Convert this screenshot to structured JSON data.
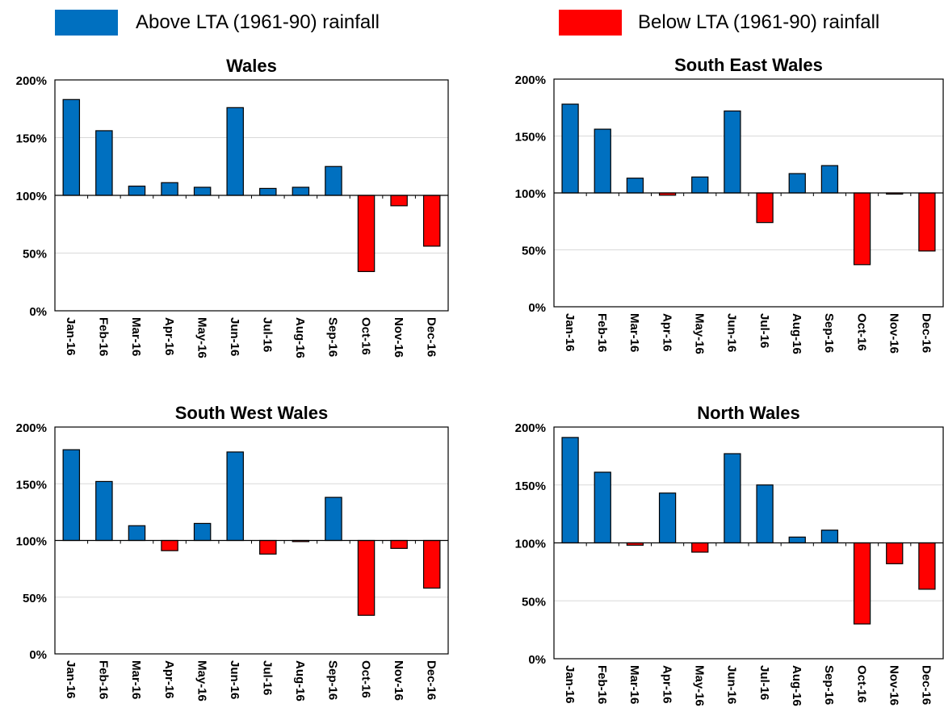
{
  "legend": {
    "above": {
      "label": "Above LTA (1961-90) rainfall",
      "color": "#0070C0"
    },
    "below": {
      "label": "Below LTA (1961-90)  rainfall",
      "color": "#FF0000"
    }
  },
  "chart_data": [
    {
      "type": "bar",
      "title": "Wales",
      "baseline": 100,
      "ylim": [
        0,
        200
      ],
      "yticks": [
        "0%",
        "50%",
        "100%",
        "150%",
        "200%"
      ],
      "categories": [
        "Jan-16",
        "Feb-16",
        "Mar-16",
        "Apr-16",
        "May-16",
        "Jun-16",
        "Jul-16",
        "Aug-16",
        "Sep-16",
        "Oct-16",
        "Nov-16",
        "Dec-16"
      ],
      "values": [
        183,
        156,
        108,
        111,
        107,
        176,
        106,
        107,
        125,
        34,
        91,
        56
      ]
    },
    {
      "type": "bar",
      "title": "South East Wales",
      "baseline": 100,
      "ylim": [
        0,
        200
      ],
      "yticks": [
        "0%",
        "50%",
        "100%",
        "150%",
        "200%"
      ],
      "categories": [
        "Jan-16",
        "Feb-16",
        "Mar-16",
        "Apr-16",
        "May-16",
        "Jun-16",
        "Jul-16",
        "Aug-16",
        "Sep-16",
        "Oct-16",
        "Nov-16",
        "Dec-16"
      ],
      "values": [
        178,
        156,
        113,
        98,
        114,
        172,
        74,
        117,
        124,
        37,
        99,
        49
      ]
    },
    {
      "type": "bar",
      "title": "South West Wales",
      "baseline": 100,
      "ylim": [
        0,
        200
      ],
      "yticks": [
        "0%",
        "50%",
        "100%",
        "150%",
        "200%"
      ],
      "categories": [
        "Jan-16",
        "Feb-16",
        "Mar-16",
        "Apr-16",
        "May-16",
        "Jun-16",
        "Jul-16",
        "Aug-16",
        "Sep-16",
        "Oct-16",
        "Nov-16",
        "Dec-16"
      ],
      "values": [
        180,
        152,
        113,
        91,
        115,
        178,
        88,
        99,
        138,
        34,
        93,
        58
      ]
    },
    {
      "type": "bar",
      "title": "North Wales",
      "baseline": 100,
      "ylim": [
        0,
        200
      ],
      "yticks": [
        "0%",
        "50%",
        "100%",
        "150%",
        "200%"
      ],
      "categories": [
        "Jan-16",
        "Feb-16",
        "Mar-16",
        "Apr-16",
        "May-16",
        "Jun-16",
        "Jul-16",
        "Aug-16",
        "Sep-16",
        "Oct-16",
        "Nov-16",
        "Dec-16"
      ],
      "values": [
        191,
        161,
        98,
        143,
        92,
        177,
        150,
        105,
        111,
        30,
        82,
        60
      ]
    }
  ]
}
